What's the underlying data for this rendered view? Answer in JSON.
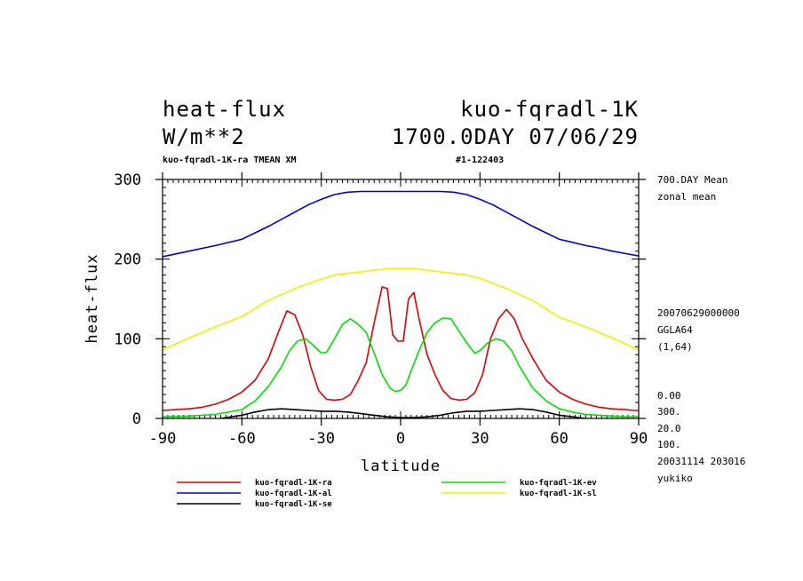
{
  "header": {
    "left_line1": "heat-flux",
    "left_line2": "W/m**2",
    "right_line1": "kuo-fqradl-1K",
    "right_line2": "1700.0DAY 07/06/29"
  },
  "subtitle": {
    "left": "kuo-fqradl-1K-ra TMEAN XM",
    "right": "#1-122403"
  },
  "right_info": {
    "top": [
      "700.DAY Mean",
      "zonal mean"
    ],
    "middle": [
      "20070629000000",
      "GGLA64",
      "(1,64)"
    ],
    "bottom": [
      "0.00",
      "300.",
      "20.0",
      "100.",
      "20031114 203016",
      "yukiko"
    ]
  },
  "chart_data": {
    "type": "line",
    "xlabel": "latitude",
    "ylabel": "heat-flux",
    "xlim": [
      -90,
      90
    ],
    "ylim": [
      0,
      300
    ],
    "xticks": [
      -90,
      -60,
      -30,
      0,
      30,
      60,
      90
    ],
    "xtick_labels": [
      "-90",
      "-60",
      "-30",
      "0",
      "30",
      "60",
      "90"
    ],
    "yticks": [
      0,
      100,
      200,
      300
    ],
    "ytick_labels": [
      "0",
      "100",
      "200",
      "300"
    ],
    "grid": false,
    "legend_position": "bottom",
    "series": [
      {
        "name": "kuo-fqradl-1K-ra",
        "color": "#e00000",
        "x": [
          -90,
          -85,
          -80,
          -75,
          -70,
          -65,
          -60,
          -55,
          -50,
          -46,
          -43,
          -40,
          -37,
          -34,
          -31,
          -28,
          -25,
          -22,
          -19,
          -16,
          -13,
          -10,
          -7,
          -5,
          -3,
          -1,
          1,
          3,
          5,
          7,
          10,
          13,
          16,
          19,
          22,
          25,
          28,
          31,
          34,
          37,
          40,
          43,
          46,
          50,
          55,
          60,
          65,
          70,
          75,
          80,
          85,
          88,
          90
        ],
        "y": [
          10,
          11,
          12,
          14,
          18,
          24,
          33,
          48,
          75,
          110,
          135,
          130,
          105,
          65,
          35,
          24,
          23,
          24,
          30,
          48,
          70,
          120,
          165,
          163,
          105,
          97,
          97,
          150,
          158,
          125,
          80,
          55,
          35,
          25,
          23,
          24,
          32,
          55,
          100,
          125,
          137,
          125,
          100,
          75,
          48,
          33,
          24,
          18,
          14,
          12,
          11,
          10,
          10
        ]
      },
      {
        "name": "kuo-fqradl-1K-al",
        "color": "#0000d0",
        "x": [
          -90,
          -80,
          -70,
          -60,
          -55,
          -50,
          -45,
          -40,
          -35,
          -30,
          -25,
          -20,
          -15,
          -10,
          -5,
          0,
          5,
          10,
          15,
          20,
          25,
          30,
          35,
          40,
          45,
          50,
          55,
          60,
          65,
          70,
          75,
          80,
          85,
          90
        ],
        "y": [
          203,
          210,
          217,
          225,
          233,
          241,
          250,
          259,
          268,
          275,
          281,
          284,
          285,
          285,
          285,
          285,
          285,
          285,
          285,
          284,
          281,
          275,
          268,
          259,
          250,
          241,
          233,
          225,
          221,
          217,
          214,
          210,
          207,
          204
        ]
      },
      {
        "name": "kuo-fqradl-1K-ev",
        "color": "#00e000",
        "x": [
          -90,
          -80,
          -70,
          -60,
          -55,
          -50,
          -45,
          -42,
          -39,
          -36,
          -33,
          -30,
          -28,
          -25,
          -22,
          -19,
          -16,
          -13,
          -10,
          -7,
          -4,
          -2,
          0,
          2,
          4,
          7,
          10,
          13,
          16,
          19,
          22,
          25,
          28,
          30,
          33,
          36,
          39,
          42,
          45,
          50,
          55,
          60,
          65,
          70,
          75,
          80,
          85,
          90
        ],
        "y": [
          2,
          3,
          5,
          11,
          22,
          40,
          65,
          85,
          97,
          100,
          92,
          82,
          83,
          100,
          118,
          125,
          118,
          108,
          82,
          55,
          38,
          34,
          35,
          42,
          60,
          85,
          108,
          120,
          126,
          125,
          110,
          95,
          82,
          85,
          95,
          100,
          97,
          85,
          65,
          38,
          22,
          12,
          8,
          5,
          4,
          3,
          2,
          2
        ]
      },
      {
        "name": "kuo-fqradl-1K-sl",
        "color": "#f0f000",
        "x": [
          -90,
          -80,
          -70,
          -60,
          -50,
          -40,
          -30,
          -25,
          -20,
          -15,
          -10,
          -5,
          0,
          5,
          10,
          15,
          20,
          25,
          30,
          40,
          50,
          60,
          70,
          80,
          90
        ],
        "y": [
          86,
          101,
          115,
          128,
          148,
          163,
          175,
          180,
          182,
          184,
          186,
          188,
          188,
          188,
          186,
          184,
          182,
          180,
          176,
          163,
          148,
          127,
          115,
          101,
          86
        ]
      },
      {
        "name": "kuo-fqradl-1K-se",
        "color": "#000000",
        "x": [
          -90,
          -80,
          -70,
          -60,
          -55,
          -50,
          -45,
          -40,
          -35,
          -30,
          -25,
          -20,
          -15,
          -10,
          -5,
          0,
          5,
          10,
          15,
          20,
          25,
          30,
          35,
          40,
          45,
          50,
          55,
          60,
          65,
          70,
          75,
          80,
          85,
          90
        ],
        "y": [
          -10,
          -5,
          -1,
          4,
          8,
          11,
          12,
          11,
          10,
          9,
          9,
          8,
          6,
          4,
          2,
          1,
          1,
          2,
          4,
          7,
          9,
          9,
          10,
          11,
          12,
          11,
          8,
          4,
          2,
          0,
          -1,
          -3,
          -6,
          -10
        ]
      }
    ]
  }
}
